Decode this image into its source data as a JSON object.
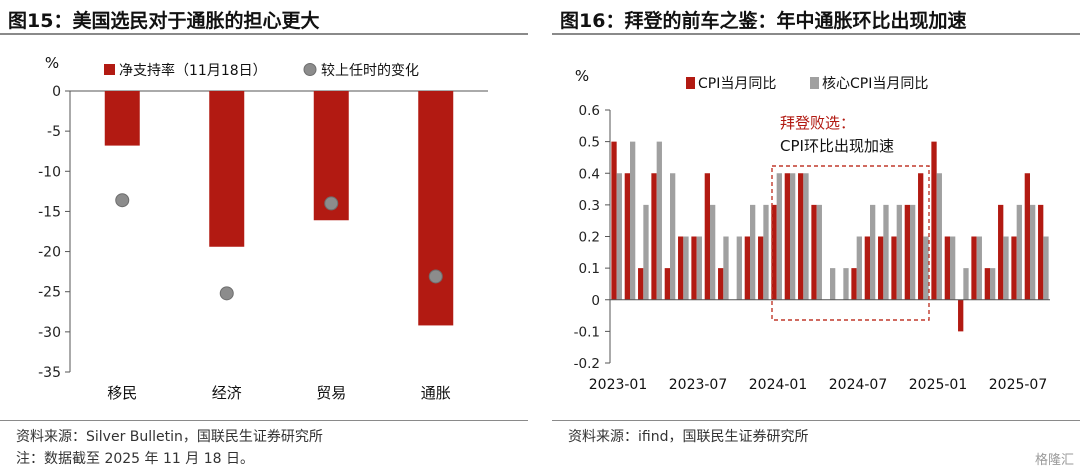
{
  "left": {
    "title": "图15：美国选民对于通胀的担心更大",
    "source": "资料来源：Silver Bulletin，国联民生证券研究所",
    "note": "注：数据截至 2025 年 11 月 18 日。",
    "colors": {
      "bar": "#b21a12",
      "dot": "#8c8c8c"
    },
    "chart_data": {
      "type": "bar",
      "unit": "%",
      "categories": [
        "移民",
        "经济",
        "贸易",
        "通胀"
      ],
      "series": [
        {
          "name": "净支持率（11月18日）",
          "values": [
            -6.8,
            -19.4,
            -16.1,
            -29.2
          ]
        },
        {
          "name": "较上任时的变化",
          "values": [
            -13.6,
            -25.2,
            -14.0,
            -23.1
          ]
        }
      ],
      "ylim": [
        -35,
        0
      ],
      "yticks": [
        0,
        -5,
        -10,
        -15,
        -20,
        -25,
        -30,
        -35
      ],
      "legend": "top"
    }
  },
  "right": {
    "title": "图16：拜登的前车之鉴：年中通胀环比出现加速",
    "source": "资料来源：ifind，国联民生证券研究所",
    "annotation": {
      "line1": "拜登败选：",
      "line2": "CPI环比出现加速"
    },
    "colors": {
      "cpi": "#b21a12",
      "core": "#a0a0a0",
      "annotation_text": "#b21a12",
      "annotation_box": "#c0392b"
    },
    "chart_data": {
      "type": "bar",
      "unit": "%",
      "x": [
        "2023-01",
        "2023-02",
        "2023-03",
        "2023-04",
        "2023-05",
        "2023-06",
        "2023-07",
        "2023-08",
        "2023-09",
        "2023-10",
        "2023-11",
        "2023-12",
        "2024-01",
        "2024-02",
        "2024-03",
        "2024-04",
        "2024-05",
        "2024-06",
        "2024-07",
        "2024-08",
        "2024-09",
        "2024-10",
        "2024-11",
        "2024-12",
        "2025-01",
        "2025-02",
        "2025-03",
        "2025-04",
        "2025-05",
        "2025-06",
        "2025-07",
        "2025-08",
        "2025-09"
      ],
      "xticks": [
        "2023-01",
        "2023-07",
        "2024-01",
        "2024-07",
        "2025-01",
        "2025-07"
      ],
      "series": [
        {
          "name": "CPI当月同比",
          "values": [
            0.5,
            0.4,
            0.1,
            0.4,
            0.1,
            0.2,
            0.2,
            0.4,
            0.1,
            0.0,
            0.2,
            0.2,
            0.3,
            0.4,
            0.4,
            0.3,
            0.0,
            0.0,
            0.1,
            0.2,
            0.2,
            0.2,
            0.3,
            0.4,
            0.5,
            0.2,
            -0.1,
            0.2,
            0.1,
            0.3,
            0.2,
            0.4,
            0.3
          ]
        },
        {
          "name": "核心CPI当月同比",
          "values": [
            0.4,
            0.5,
            0.3,
            0.5,
            0.4,
            0.2,
            0.2,
            0.3,
            0.2,
            0.2,
            0.3,
            0.3,
            0.4,
            0.4,
            0.4,
            0.3,
            0.1,
            0.1,
            0.2,
            0.3,
            0.3,
            0.3,
            0.3,
            0.2,
            0.4,
            0.2,
            0.1,
            0.2,
            0.1,
            0.2,
            0.3,
            0.3,
            0.2
          ]
        }
      ],
      "ylim": [
        -0.2,
        0.6
      ],
      "yticks": [
        0.6,
        0.5,
        0.4,
        0.3,
        0.2,
        0.1,
        0,
        -0.1,
        -0.2
      ],
      "legend": "top"
    }
  },
  "watermark": "格隆汇"
}
